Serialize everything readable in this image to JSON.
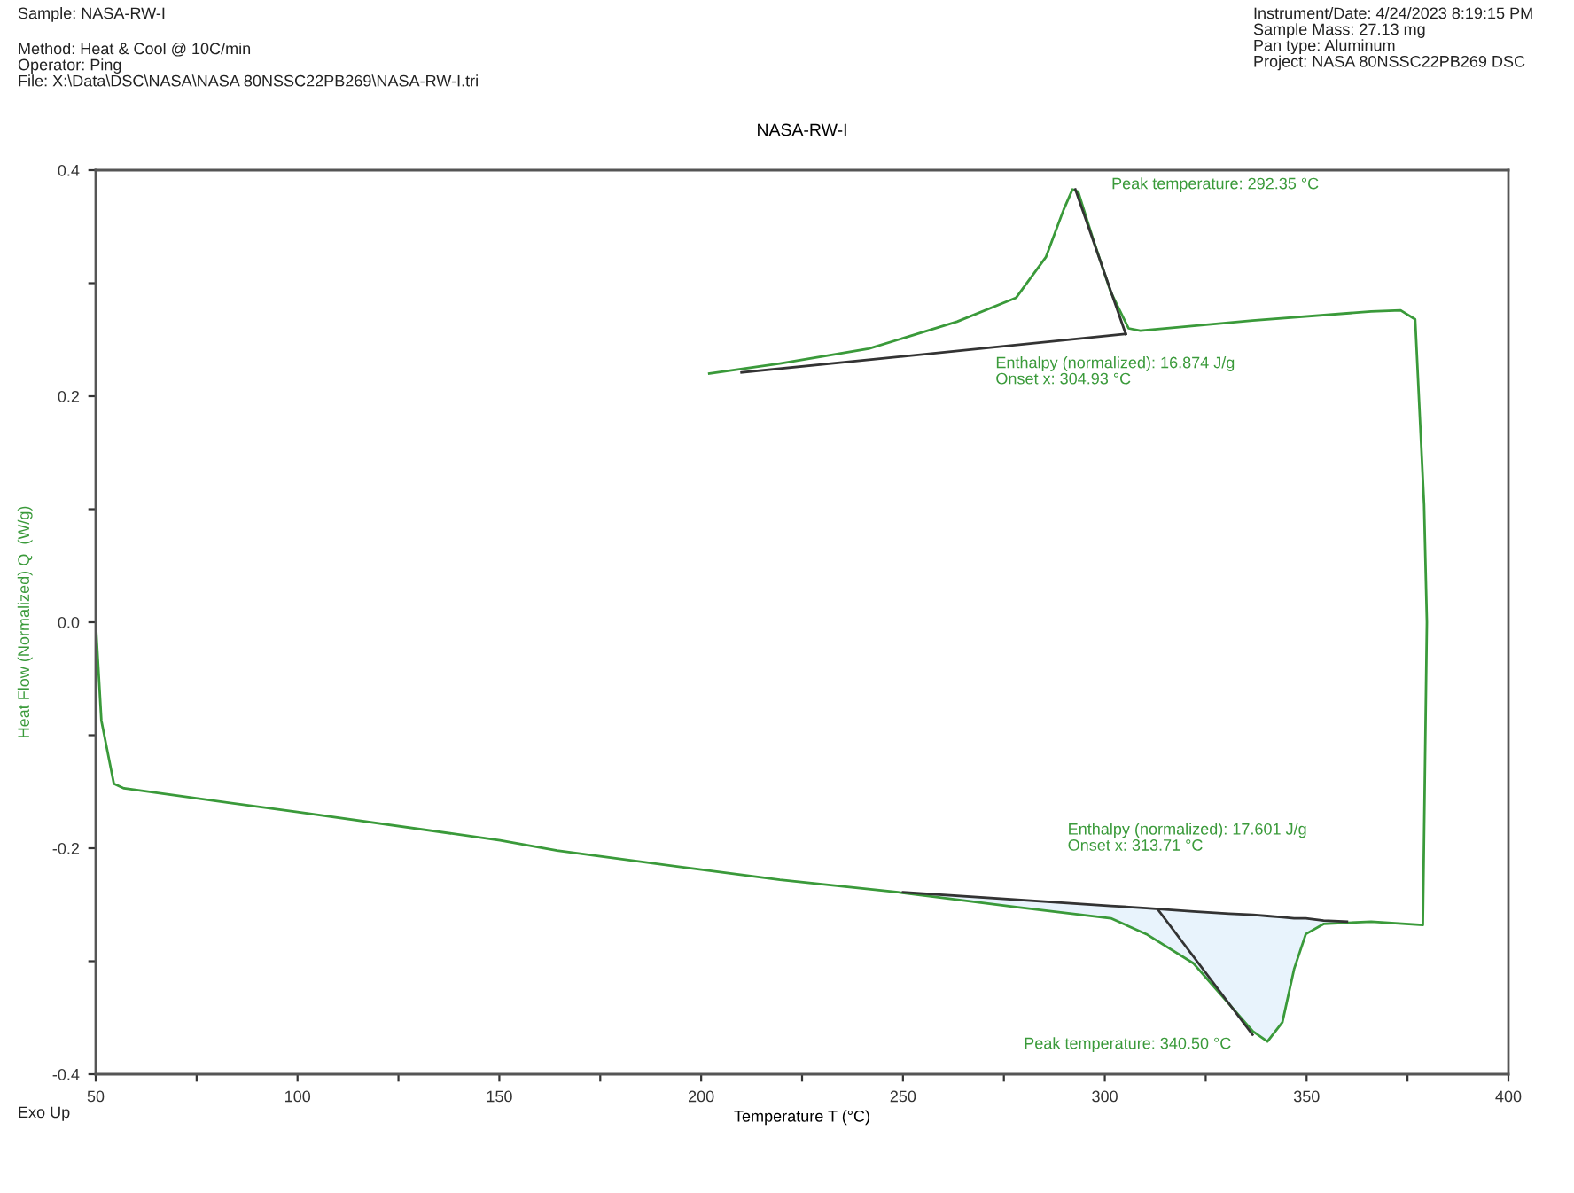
{
  "chart_data": {
    "type": "line",
    "title": "NASA-RW-I",
    "xlabel": "Temperature T (°C)",
    "ylabel": "Heat Flow (Normalized) Q  (W/g)",
    "xlim": [
      50,
      400
    ],
    "ylim": [
      -0.4,
      0.4
    ],
    "xticks": [
      50,
      {
        "value": 75,
        "label": null
      },
      100,
      {
        "value": 125,
        "label": null
      },
      150,
      {
        "value": 175,
        "label": null
      },
      200,
      {
        "value": 225,
        "label": null
      },
      250,
      {
        "value": 275,
        "label": null
      },
      300,
      {
        "value": 325,
        "label": null
      },
      350,
      {
        "value": 375,
        "label": null
      },
      400
    ],
    "yticks": [
      {
        "value": -0.4,
        "label": "-0.4"
      },
      {
        "value": -0.3,
        "label": null
      },
      {
        "value": -0.2,
        "label": "-0.2"
      },
      {
        "value": -0.1,
        "label": null
      },
      {
        "value": 0,
        "label": "0.0"
      },
      {
        "value": 0.1,
        "label": null
      },
      {
        "value": 0.2,
        "label": "0.2"
      },
      {
        "value": 0.3,
        "label": null
      },
      {
        "value": 0.4,
        "label": "0.4"
      }
    ],
    "grid": false,
    "legend": false,
    "series": [
      {
        "color": "#3a9a3a",
        "x": [
          50,
          51.4,
          54.5,
          57,
          100,
          150.2,
          164.3,
          200,
          219.5,
          248.8,
          278,
          301.5,
          310.3,
          322,
          330.8,
          336.7,
          340.3,
          344,
          346.9,
          349.8,
          354.2,
          366,
          378.8,
          379.8,
          379.1,
          376.9,
          373.3,
          366,
          336.6,
          308.8,
          305.9,
          301.5,
          297.1,
          293.4,
          292,
          289.8,
          285.4,
          278,
          263.4,
          241.5,
          219.5,
          202
        ],
        "values": [
          0,
          -0.087,
          -0.143,
          -0.147,
          -0.168,
          -0.193,
          -0.202,
          -0.219,
          -0.228,
          -0.239,
          -0.252,
          -0.262,
          -0.276,
          -0.302,
          -0.338,
          -0.362,
          -0.371,
          -0.354,
          -0.307,
          -0.276,
          -0.267,
          -0.265,
          -0.268,
          0,
          0.104,
          0.268,
          0.276,
          0.275,
          0.267,
          0.258,
          0.26,
          0.292,
          0.339,
          0.381,
          0.383,
          0.365,
          0.323,
          0.287,
          0.266,
          0.242,
          0.229,
          0.22
        ]
      },
      {
        "color": "#333333",
        "x": [
          250,
          301.5,
          310.3,
          322,
          330.8,
          336.7,
          340.3,
          344,
          346.9,
          349.8,
          354.2,
          360
        ],
        "values": [
          -0.239,
          -0.251,
          -0.253,
          -0.256,
          -0.258,
          -0.259,
          -0.26,
          -0.261,
          -0.262,
          -0.262,
          -0.264,
          -0.265
        ],
        "lower": [
          -0.239,
          -0.262,
          -0.276,
          -0.302,
          -0.338,
          -0.362,
          -0.371,
          -0.354,
          -0.307,
          -0.276,
          -0.267,
          -0.265
        ],
        "upper": [
          -0.239,
          -0.251,
          -0.253,
          -0.256,
          -0.258,
          -0.259,
          -0.26,
          -0.261,
          -0.262,
          -0.262,
          -0.264,
          -0.265
        ]
      },
      {
        "color": "#333333",
        "x": [
          313.3,
          336.6
        ],
        "values": [
          -0.255,
          -0.365
        ]
      },
      {
        "color": "#333333",
        "x": [
          210,
          305.2
        ],
        "values": [
          0.221,
          0.255
        ]
      },
      {
        "color": "#333333",
        "x": [
          292.7,
          305.2
        ],
        "values": [
          0.383,
          0.255
        ]
      }
    ],
    "annotations": [
      "Peak temperature: 292.35 °C",
      "Enthalpy (normalized): 16.874 J/g\nOnset x: 304.93 °C",
      "Enthalpy (normalized): 17.601 J/g\nOnset x: 313.71 °C",
      "Peak temperature: 340.50 °C",
      "Sample: NASA-RW-I",
      "Method: Heat & Cool @ 10C/min\nOperator: Ping\nFile: X:\\Data\\DSC\\NASA\\NASA 80NSSC22PB269\\NASA-RW-I.tri",
      "Instrument/Date: 4/24/2023 8:19:15 PM\nSample Mass: 27.13 mg\nPan type: Aluminum\nProject: NASA 80NSSC22PB269 DSC",
      "Exo Up"
    ]
  }
}
